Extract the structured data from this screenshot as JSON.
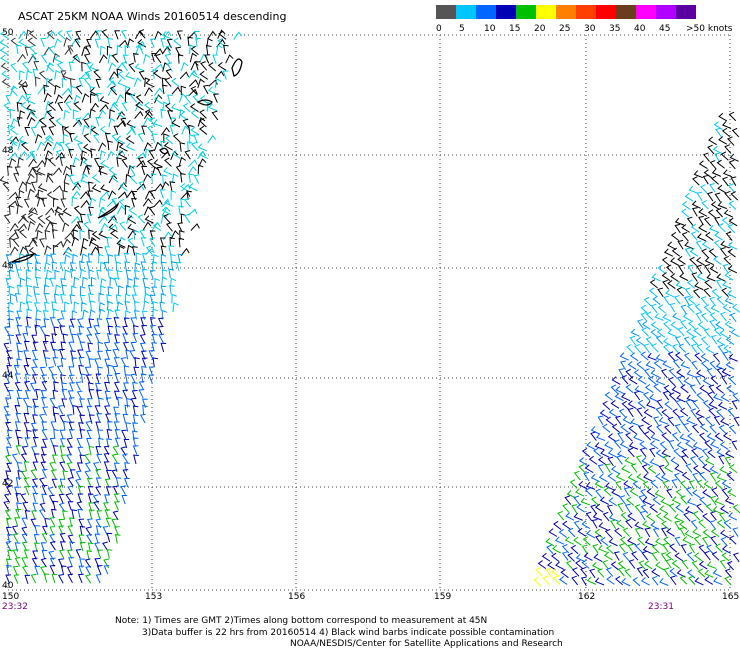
{
  "title": "ASCAT 25KM NOAA Winds 20160514 descending",
  "legend": {
    "colors": [
      "#555555",
      "#00c6ff",
      "#0066ff",
      "#0000b4",
      "#00c000",
      "#ffff00",
      "#ff8000",
      "#ff4000",
      "#ff0000",
      "#6b3c1e",
      "#ff00ff",
      "#b000ff",
      "#5a00a0"
    ],
    "labels": [
      "0",
      "5",
      "10",
      "15",
      "20",
      "25",
      "30",
      "35",
      "40",
      "45",
      ">50 knots"
    ]
  },
  "latitudes": [
    "50",
    "48",
    "46",
    "44",
    "42",
    "40"
  ],
  "longitudes": [
    "150",
    "153",
    "156",
    "159",
    "162",
    "165"
  ],
  "times": {
    "left": "23:32",
    "right": "23:31"
  },
  "notes": {
    "line1": "Note: 1) Times are GMT 2)Times along bottom correspond to measurement at 45N",
    "line2": "3)Data buffer is 22 hrs from 20160514 4) Black wind barbs indicate possible contamination",
    "line3": "NOAA/NESDIS/Center for Satellite Applications and Research"
  }
}
